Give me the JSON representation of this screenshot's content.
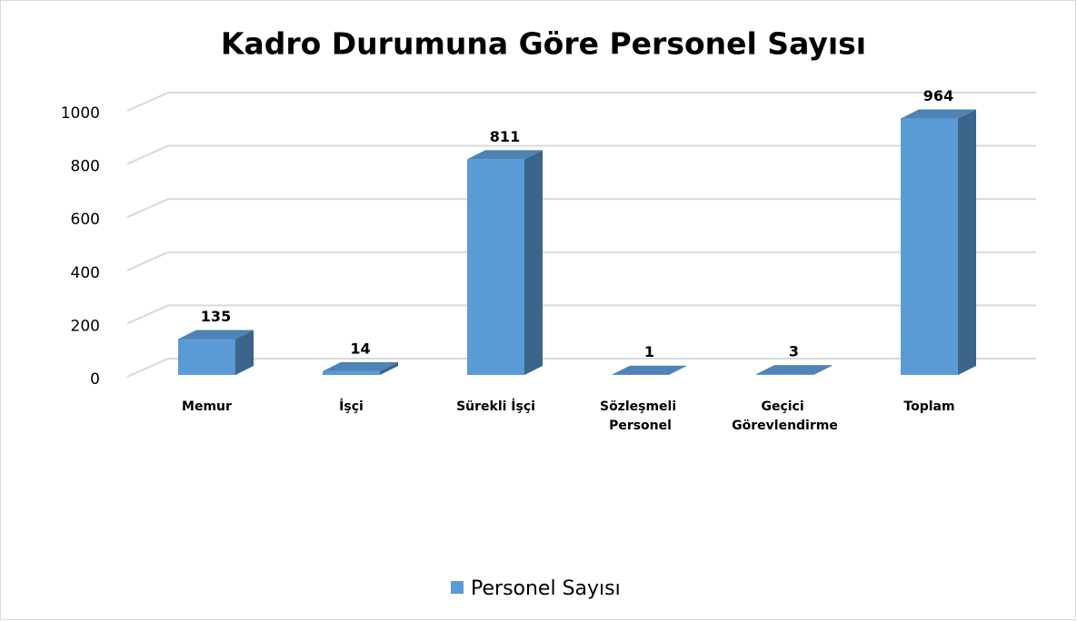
{
  "chart_data": {
    "type": "bar3d",
    "title": "Kadro Durumuna Göre Personel Sayısı",
    "categories": [
      "Memur",
      "İşçi",
      "Sürekli İşçi",
      "Sözleşmeli Personel",
      "Geçici Görevlendirme",
      "Toplam"
    ],
    "series": [
      {
        "name": "Personel Sayısı",
        "color": "#5b9bd5",
        "values": [
          135,
          14,
          811,
          1,
          3,
          964
        ]
      }
    ],
    "ylim": [
      0,
      1000
    ],
    "yticks": [
      0,
      200,
      400,
      600,
      800,
      1000
    ],
    "grid": true,
    "legend": "bottom"
  }
}
